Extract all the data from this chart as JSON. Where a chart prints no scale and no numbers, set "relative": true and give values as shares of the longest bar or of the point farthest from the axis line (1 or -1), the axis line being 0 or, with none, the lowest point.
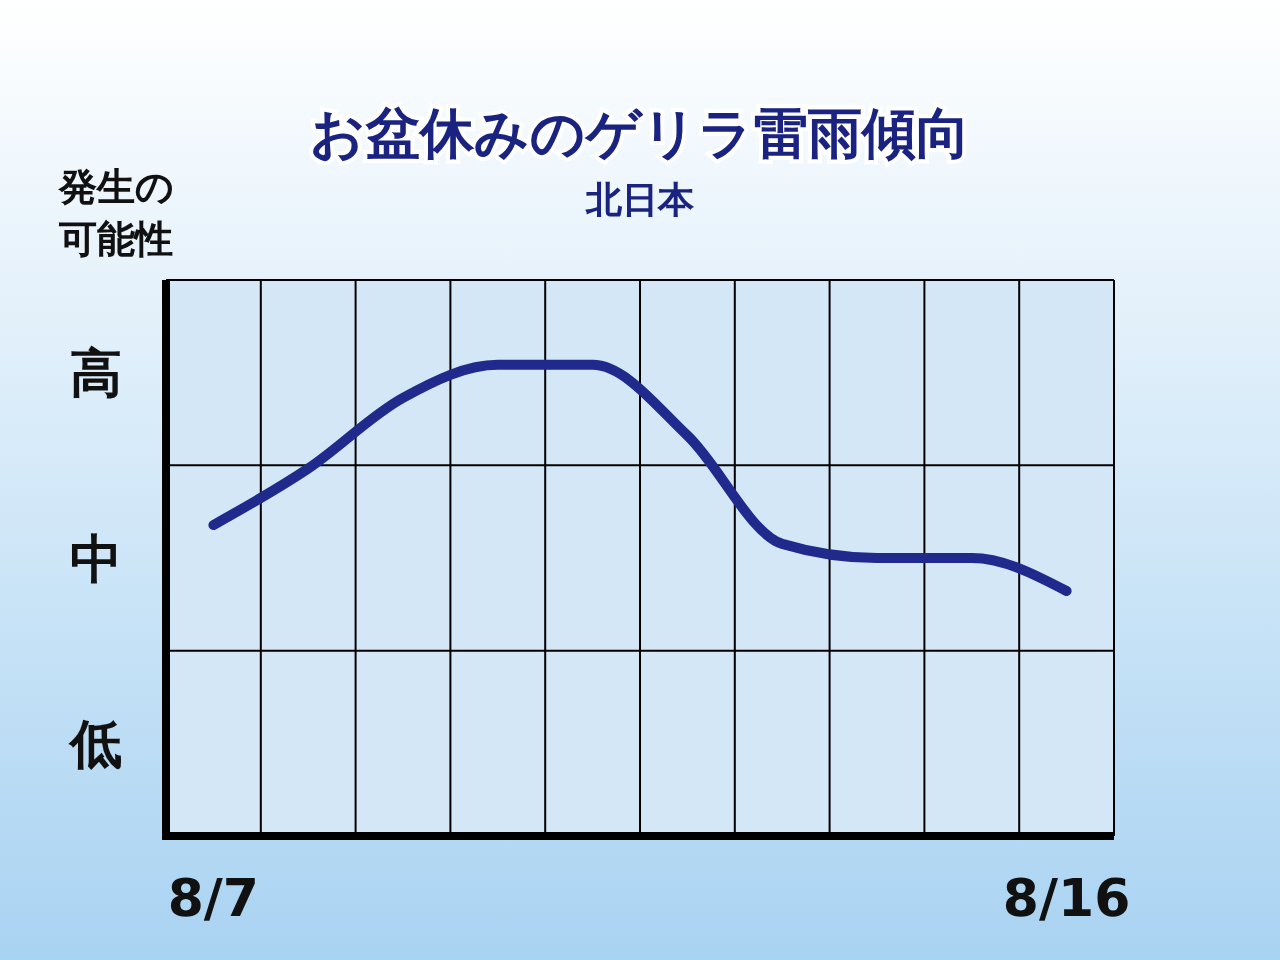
{
  "chart_data": {
    "type": "line",
    "title": "お盆休みのゲリラ雷雨傾向",
    "subtitle": "北日本",
    "ylabel": "発生の可能性",
    "categories": [
      "8/7",
      null,
      null,
      null,
      null,
      null,
      null,
      null,
      null,
      "8/16"
    ],
    "series": [
      {
        "color": "#1f2a8c",
        "values": [
          0.66,
          0.78,
          0.93,
          1,
          1,
          0.85,
          0.62,
          0.59,
          0.59,
          0.52
        ]
      }
    ],
    "relative": true,
    "annotations": [
      "高",
      "中",
      "低"
    ],
    "grid": true,
    "marker": "none",
    "line_style": "solid"
  }
}
